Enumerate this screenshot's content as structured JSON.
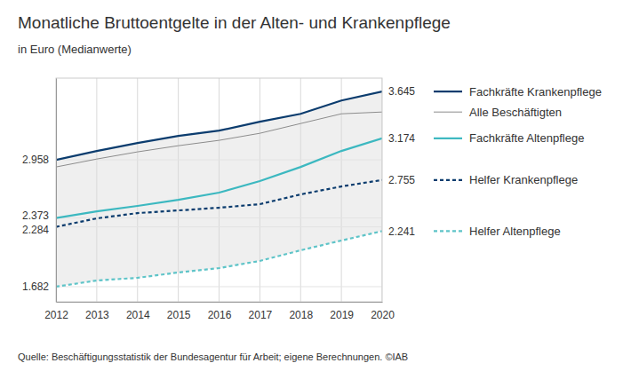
{
  "chart_data": {
    "type": "line",
    "title": "Monatliche Bruttoentgelte in der Alten- und Krankenpflege",
    "subtitle": "in Euro (Medianwerte)",
    "source": "Quelle: Beschäftigungsstatistik der Bundesagentur für Arbeit; eigene Berechnungen. ©IAB",
    "x": [
      2012,
      2013,
      2014,
      2015,
      2016,
      2017,
      2018,
      2019,
      2020
    ],
    "xlim": [
      2012,
      2020
    ],
    "xticks": [
      2012,
      2013,
      2014,
      2015,
      2016,
      2017,
      2018,
      2019,
      2020
    ],
    "ylim": [
      1530,
      3780
    ],
    "yticks": [
      {
        "value": 1682,
        "label": "1.682"
      },
      {
        "value": 2284,
        "label": "2.284"
      },
      {
        "value": 2373,
        "label": "2.373"
      },
      {
        "value": 2958,
        "label": "2.958"
      }
    ],
    "grid": true,
    "legend": "right",
    "series": [
      {
        "name": "Fachkräfte Krankenpflege",
        "color": "#0b3c6e",
        "line_style": "solid",
        "values": [
          2958,
          3047,
          3127,
          3198,
          3252,
          3341,
          3421,
          3555,
          3645
        ],
        "value_labels": [
          null,
          null,
          null,
          null,
          null,
          null,
          null,
          null,
          "3.645"
        ]
      },
      {
        "name": "Alle Beschäftigten",
        "color": "#8c8c8c",
        "line_style": "solid",
        "values": [
          2886,
          2966,
          3038,
          3100,
          3154,
          3225,
          3323,
          3421,
          3439
        ]
      },
      {
        "name": "Fachkräfte Altenpflege",
        "color": "#3cb8c0",
        "line_style": "solid",
        "values": [
          2373,
          2440,
          2494,
          2556,
          2628,
          2744,
          2886,
          3047,
          3174
        ],
        "value_labels": [
          null,
          null,
          null,
          null,
          null,
          null,
          null,
          null,
          "3.174"
        ]
      },
      {
        "name": "Helfer Krankenpflege",
        "color": "#0b3c6e",
        "line_style": "dashed",
        "values": [
          2284,
          2369,
          2422,
          2449,
          2476,
          2512,
          2610,
          2690,
          2755
        ],
        "value_labels": [
          null,
          null,
          null,
          null,
          null,
          null,
          null,
          null,
          "2.755"
        ]
      },
      {
        "name": "Helfer Altenpflege",
        "color": "#5ec4c8",
        "line_style": "dashed",
        "values": [
          1682,
          1744,
          1771,
          1825,
          1869,
          1941,
          2048,
          2146,
          2241
        ],
        "value_labels": [
          null,
          null,
          null,
          null,
          null,
          null,
          null,
          null,
          "2.241"
        ]
      }
    ]
  }
}
